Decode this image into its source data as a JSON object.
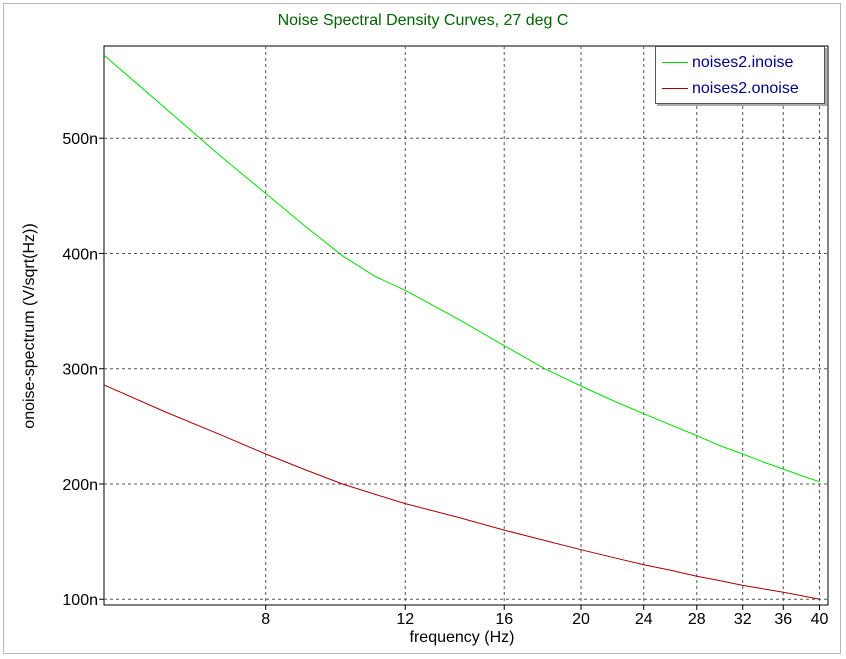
{
  "chart_data": {
    "type": "line",
    "title": "Noise Spectral Density Curves, 27 deg C",
    "xlabel": "frequency (Hz)",
    "ylabel": "onoise-spectrum (V/sqrt(Hz))",
    "x_scale": "log",
    "xlim": [
      5,
      41
    ],
    "ylim": [
      95,
      580
    ],
    "x_ticks": [
      8,
      12,
      16,
      20,
      24,
      28,
      32,
      36,
      40
    ],
    "x_tick_labels": [
      "8",
      "12",
      "16",
      "20",
      "24",
      "28",
      "32",
      "36",
      "40"
    ],
    "y_ticks": [
      100,
      200,
      300,
      400,
      500
    ],
    "y_tick_labels": [
      "100n",
      "200n",
      "300n",
      "400n",
      "500n"
    ],
    "grid": true,
    "legend_position": "top-right",
    "series": [
      {
        "name": "noises2.inoise",
        "color": "#00dd00",
        "x": [
          5,
          6,
          7,
          8,
          9,
          10,
          11,
          12,
          14,
          16,
          18,
          20,
          22,
          24,
          26,
          28,
          30,
          32,
          34,
          36,
          38,
          40
        ],
        "y": [
          572,
          525,
          485,
          452,
          423,
          398,
          380,
          368,
          343,
          320,
          300,
          285,
          272,
          261,
          251,
          242,
          233,
          226,
          219,
          213,
          207,
          202
        ]
      },
      {
        "name": "noises2.onoise",
        "color": "#aa0000",
        "x": [
          5,
          6,
          7,
          8,
          9,
          10,
          11,
          12,
          14,
          16,
          18,
          20,
          22,
          24,
          26,
          28,
          30,
          32,
          34,
          36,
          38,
          40
        ],
        "y": [
          286,
          262,
          243,
          226,
          212,
          200,
          191,
          183,
          171,
          160,
          151,
          143,
          136,
          130,
          125,
          120,
          116,
          112,
          109,
          106,
          103,
          100
        ]
      }
    ]
  }
}
